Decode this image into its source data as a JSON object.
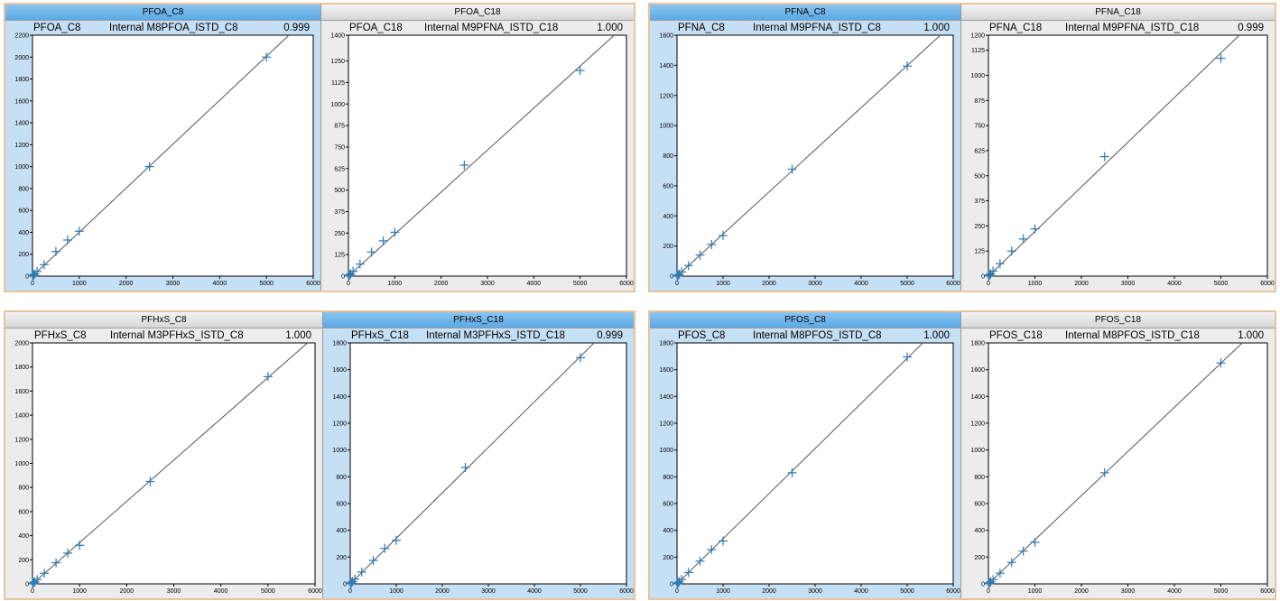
{
  "chart_data": [
    {
      "type": "scatter",
      "tab_title": "PFOA_C8",
      "info_name": "PFOA_C8",
      "info_istd": "Internal M8PFOA_ISTD_C8",
      "info_r2": "0.999",
      "x": [
        5,
        10,
        25,
        50,
        100,
        250,
        500,
        750,
        1000,
        2500,
        5000
      ],
      "y": [
        2,
        4,
        10,
        20,
        42,
        105,
        225,
        330,
        410,
        1000,
        2000
      ],
      "xlim": [
        0,
        6000
      ],
      "ylim": [
        0,
        2200
      ],
      "xticks": [
        0,
        1000,
        2000,
        3000,
        4000,
        5000,
        6000
      ],
      "yticks": [
        0,
        200,
        400,
        600,
        800,
        1000,
        1200,
        1400,
        1600,
        1800,
        2000,
        2200
      ],
      "active": true
    },
    {
      "type": "scatter",
      "tab_title": "PFOA_C18",
      "info_name": "PFOA_C18",
      "info_istd": "Internal M9PFNA_ISTD_C18",
      "info_r2": "1.000",
      "x": [
        5,
        10,
        25,
        50,
        100,
        250,
        500,
        750,
        1000,
        2500,
        5000
      ],
      "y": [
        1,
        3,
        7,
        14,
        28,
        70,
        140,
        205,
        255,
        645,
        1195
      ],
      "xlim": [
        0,
        6000
      ],
      "ylim": [
        0,
        1400
      ],
      "xticks": [
        0,
        1000,
        2000,
        3000,
        4000,
        5000,
        6000
      ],
      "yticks": [
        0,
        125,
        250,
        375,
        500,
        625,
        750,
        875,
        1000,
        1125,
        1250,
        1400
      ],
      "active": false
    },
    {
      "type": "scatter",
      "tab_title": "PFNA_C8",
      "info_name": "PFNA_C8",
      "info_istd": "Internal M9PFNA_ISTD_C8",
      "info_r2": "1.000",
      "x": [
        5,
        10,
        25,
        50,
        100,
        250,
        500,
        750,
        1000,
        2500,
        5000
      ],
      "y": [
        1,
        3,
        7,
        14,
        28,
        70,
        140,
        210,
        270,
        710,
        1395
      ],
      "xlim": [
        0,
        6000
      ],
      "ylim": [
        0,
        1600
      ],
      "xticks": [
        0,
        1000,
        2000,
        3000,
        4000,
        5000,
        6000
      ],
      "yticks": [
        0,
        200,
        400,
        600,
        800,
        1000,
        1200,
        1400,
        1600
      ],
      "active": true
    },
    {
      "type": "scatter",
      "tab_title": "PFNA_C18",
      "info_name": "PFNA_C18",
      "info_istd": "Internal M9PFNA_ISTD_C18",
      "info_r2": "0.999",
      "x": [
        5,
        10,
        25,
        50,
        100,
        250,
        500,
        750,
        1000,
        2500,
        5000
      ],
      "y": [
        1,
        3,
        6,
        12,
        25,
        62,
        125,
        185,
        235,
        595,
        1085
      ],
      "xlim": [
        0,
        6000
      ],
      "ylim": [
        0,
        1200
      ],
      "xticks": [
        0,
        1000,
        2000,
        3000,
        4000,
        5000,
        6000
      ],
      "yticks": [
        0,
        125,
        250,
        375,
        500,
        625,
        750,
        875,
        1000,
        1125,
        1200
      ],
      "active": false
    },
    {
      "type": "scatter",
      "tab_title": "PFHxS_C8",
      "info_name": "PFHxS_C8",
      "info_istd": "Internal M3PFHxS_ISTD_C8",
      "info_r2": "1.000",
      "x": [
        5,
        10,
        25,
        50,
        100,
        250,
        500,
        750,
        1000,
        2500,
        5000
      ],
      "y": [
        2,
        4,
        9,
        18,
        35,
        88,
        175,
        255,
        320,
        850,
        1720
      ],
      "xlim": [
        0,
        6000
      ],
      "ylim": [
        0,
        2000
      ],
      "xticks": [
        0,
        1000,
        2000,
        3000,
        4000,
        5000,
        6000
      ],
      "yticks": [
        0,
        200,
        400,
        600,
        800,
        1000,
        1200,
        1400,
        1600,
        1800,
        2000
      ],
      "active": false
    },
    {
      "type": "scatter",
      "tab_title": "PFHxS_C18",
      "info_name": "PFHxS_C18",
      "info_istd": "Internal M3PFHxS_ISTD_C18",
      "info_r2": "0.999",
      "x": [
        5,
        10,
        25,
        50,
        100,
        250,
        500,
        750,
        1000,
        2500,
        5000
      ],
      "y": [
        2,
        4,
        9,
        18,
        35,
        88,
        175,
        265,
        325,
        870,
        1690
      ],
      "xlim": [
        0,
        6000
      ],
      "ylim": [
        0,
        1800
      ],
      "xticks": [
        0,
        1000,
        2000,
        3000,
        4000,
        5000,
        6000
      ],
      "yticks": [
        0,
        200,
        400,
        600,
        800,
        1000,
        1200,
        1400,
        1600,
        1800
      ],
      "active": true
    },
    {
      "type": "scatter",
      "tab_title": "PFOS_C8",
      "info_name": "PFOS_C8",
      "info_istd": "Internal M8PFOS_ISTD_C8",
      "info_r2": "1.000",
      "x": [
        5,
        10,
        25,
        50,
        100,
        250,
        500,
        750,
        1000,
        2500,
        5000
      ],
      "y": [
        2,
        3,
        8,
        17,
        33,
        85,
        170,
        255,
        320,
        830,
        1695
      ],
      "xlim": [
        0,
        6000
      ],
      "ylim": [
        0,
        1800
      ],
      "xticks": [
        0,
        1000,
        2000,
        3000,
        4000,
        5000,
        6000
      ],
      "yticks": [
        0,
        200,
        400,
        600,
        800,
        1000,
        1200,
        1400,
        1600,
        1800
      ],
      "active": true
    },
    {
      "type": "scatter",
      "tab_title": "PFOS_C18",
      "info_name": "PFOS_C18",
      "info_istd": "Internal M8PFOS_ISTD_C18",
      "info_r2": "1.000",
      "x": [
        5,
        10,
        25,
        50,
        100,
        250,
        500,
        750,
        1000,
        2500,
        5000
      ],
      "y": [
        2,
        3,
        8,
        16,
        32,
        80,
        160,
        245,
        310,
        830,
        1650
      ],
      "xlim": [
        0,
        6000
      ],
      "ylim": [
        0,
        1800
      ],
      "xticks": [
        0,
        1000,
        2000,
        3000,
        4000,
        5000,
        6000
      ],
      "yticks": [
        0,
        200,
        400,
        600,
        800,
        1000,
        1200,
        1400,
        1600,
        1800
      ],
      "active": false
    }
  ],
  "colors": {
    "marker": "#2a7ab8",
    "line": "#555555",
    "origin": "#c8a000",
    "plot_bg": "#ffffff"
  }
}
